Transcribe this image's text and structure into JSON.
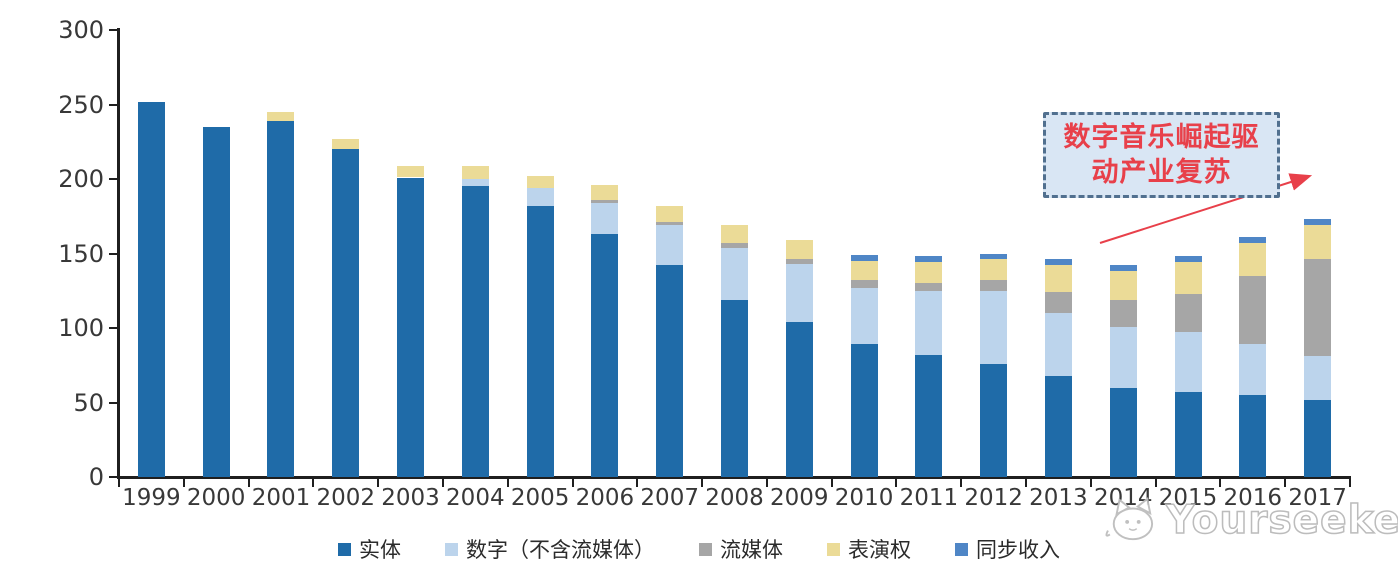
{
  "chart_data": {
    "type": "bar",
    "subtype": "stacked",
    "title": "",
    "categories": [
      "1999",
      "2000",
      "2001",
      "2002",
      "2003",
      "2004",
      "2005",
      "2006",
      "2007",
      "2008",
      "2009",
      "2010",
      "2011",
      "2012",
      "2013",
      "2014",
      "2015",
      "2016",
      "2017"
    ],
    "series": [
      {
        "key": "physical",
        "name": "实体",
        "color": "#1F6BA8",
        "values": [
          252,
          235,
          239,
          220,
          201,
          195,
          182,
          163,
          142,
          119,
          104,
          89,
          82,
          76,
          68,
          60,
          57,
          55,
          52
        ]
      },
      {
        "key": "digital",
        "name": "数字（不含流媒体）",
        "color": "#BCD4EC",
        "values": [
          0,
          0,
          0,
          0,
          0,
          5,
          12,
          21,
          27,
          35,
          39,
          38,
          43,
          49,
          42,
          41,
          40,
          34,
          29
        ]
      },
      {
        "key": "streaming",
        "name": "流媒体",
        "color": "#A6A6A6",
        "values": [
          0,
          0,
          0,
          0,
          0,
          0,
          0,
          2,
          2,
          3,
          3,
          5,
          5,
          7,
          14,
          18,
          26,
          46,
          65
        ]
      },
      {
        "key": "performance",
        "name": "表演权",
        "color": "#EBDB97",
        "values": [
          0,
          0,
          6,
          7,
          8,
          9,
          8,
          10,
          11,
          12,
          13,
          13,
          14,
          14,
          18,
          19,
          21,
          22,
          23
        ]
      },
      {
        "key": "sync",
        "name": "同步收入",
        "color": "#4F86C6",
        "values": [
          0,
          0,
          0,
          0,
          0,
          0,
          0,
          0,
          0,
          0,
          0,
          4,
          4,
          4,
          4,
          4,
          4,
          4,
          4
        ]
      }
    ],
    "ylim": [
      0,
      300
    ],
    "yticks": [
      0,
      50,
      100,
      150,
      200,
      250,
      300
    ],
    "xlabel": "",
    "ylabel": "",
    "grid": false,
    "legend_position": "bottom"
  },
  "annotation": {
    "line1": "数字音乐崛起驱",
    "line2": "动产业复苏",
    "border_color": "#51708F",
    "fill_color": "#D9E6F4",
    "text_color": "#E8404A",
    "arrow_color": "#E8404A"
  },
  "watermark": {
    "text": "Yourseeker"
  },
  "colors": {
    "axis": "#1f1f1f",
    "tick_label": "#383838",
    "background": "#ffffff"
  }
}
